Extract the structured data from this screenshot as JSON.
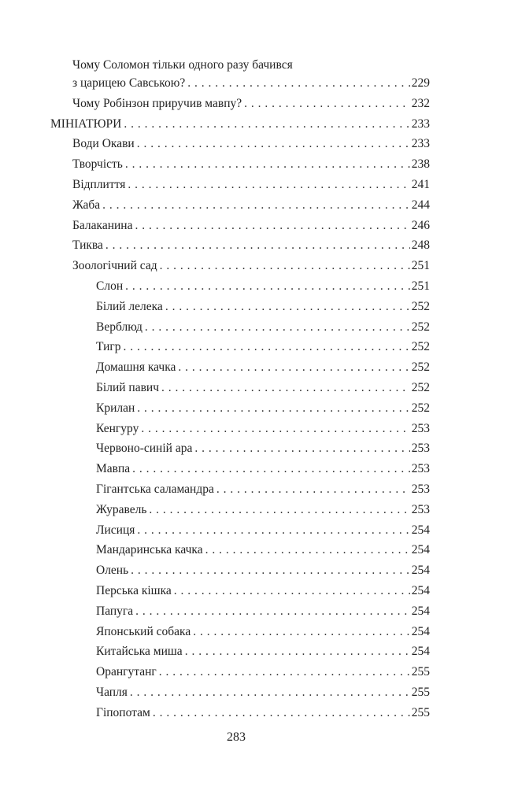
{
  "toc": [
    {
      "level": 1,
      "title_line1": "Чому Соломон тільки одного разу бачився",
      "title": "з царицею Савською?",
      "page": "229"
    },
    {
      "level": 1,
      "title": "Чому Робінзон приручив мавпу?",
      "page": "232"
    },
    {
      "level": 0,
      "title": "МІНІАТЮРИ",
      "page": "233"
    },
    {
      "level": 1,
      "title": "Води Окави",
      "page": "233"
    },
    {
      "level": 1,
      "title": "Творчість",
      "page": "238"
    },
    {
      "level": 1,
      "title": "Відплиття",
      "page": "241"
    },
    {
      "level": 1,
      "title": "Жаба",
      "page": "244"
    },
    {
      "level": 1,
      "title": "Балаканина",
      "page": "246"
    },
    {
      "level": 1,
      "title": "Тиква",
      "page": "248"
    },
    {
      "level": 1,
      "title": "Зоологічний сад",
      "page": "251"
    },
    {
      "level": 2,
      "title": "Слон",
      "page": "251"
    },
    {
      "level": 2,
      "title": "Білий лелека",
      "page": "252"
    },
    {
      "level": 2,
      "title": "Верблюд",
      "page": "252"
    },
    {
      "level": 2,
      "title": "Тигр",
      "page": "252"
    },
    {
      "level": 2,
      "title": "Домашня качка",
      "page": "252"
    },
    {
      "level": 2,
      "title": "Білий павич",
      "page": "252"
    },
    {
      "level": 2,
      "title": "Крилан",
      "page": "252"
    },
    {
      "level": 2,
      "title": "Кенгуру",
      "page": "253"
    },
    {
      "level": 2,
      "title": "Червоно-синій ара",
      "page": "253"
    },
    {
      "level": 2,
      "title": "Мавпа",
      "page": "253"
    },
    {
      "level": 2,
      "title": "Гігантська саламандра",
      "page": "253"
    },
    {
      "level": 2,
      "title": "Журавель",
      "page": "253"
    },
    {
      "level": 2,
      "title": "Лисиця",
      "page": "254"
    },
    {
      "level": 2,
      "title": "Мандаринська качка",
      "page": "254"
    },
    {
      "level": 2,
      "title": "Олень",
      "page": "254"
    },
    {
      "level": 2,
      "title": "Перська кішка",
      "page": "254"
    },
    {
      "level": 2,
      "title": "Папуга",
      "page": "254"
    },
    {
      "level": 2,
      "title": "Японський собака",
      "page": "254"
    },
    {
      "level": 2,
      "title": "Китайська миша",
      "page": "254"
    },
    {
      "level": 2,
      "title": "Орангутанг",
      "page": "255"
    },
    {
      "level": 2,
      "title": "Чапля",
      "page": "255"
    },
    {
      "level": 2,
      "title": "Гіпопотам",
      "page": "255"
    }
  ],
  "page_number": "283"
}
